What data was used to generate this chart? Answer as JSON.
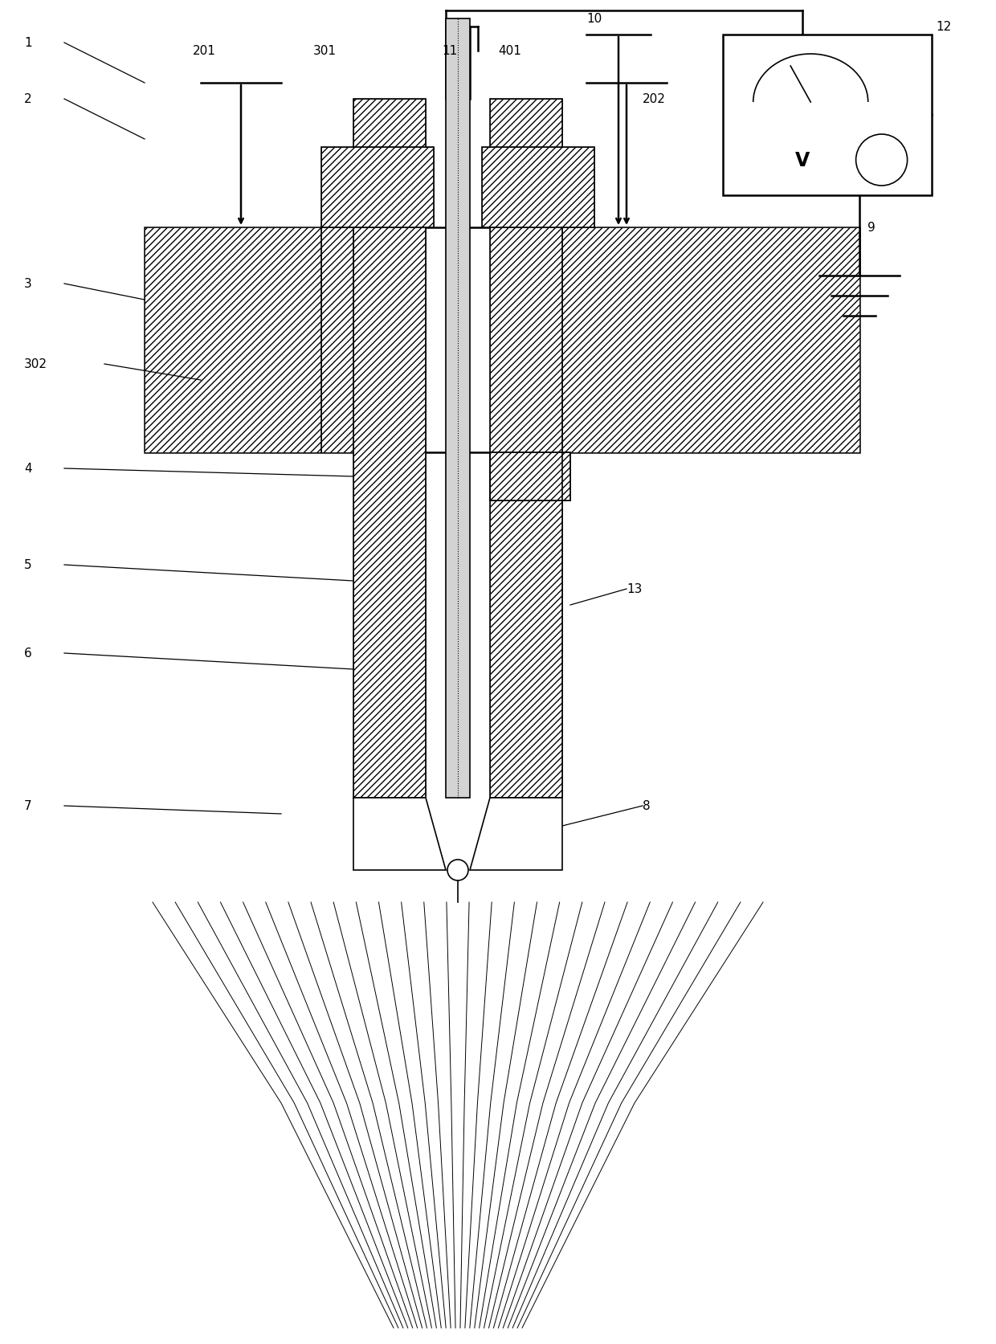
{
  "bg_color": "#ffffff",
  "line_color": "#000000",
  "fig_width": 12.4,
  "fig_height": 16.74
}
